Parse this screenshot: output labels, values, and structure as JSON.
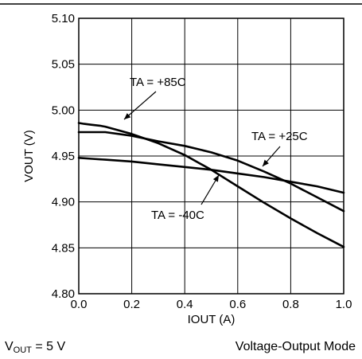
{
  "chart_data": {
    "type": "line",
    "title": "",
    "xlabel": "IOUT (A)",
    "ylabel": "VOUT (V)",
    "xlim": [
      0.0,
      1.0
    ],
    "ylim": [
      4.8,
      5.1
    ],
    "xticks": [
      "0.0",
      "0.2",
      "0.4",
      "0.6",
      "0.8",
      "1.0"
    ],
    "yticks": [
      "4.80",
      "4.85",
      "4.90",
      "4.95",
      "5.00",
      "5.05",
      "5.10"
    ],
    "grid": true,
    "series": [
      {
        "name": "TA = +85C",
        "x": [
          0.0,
          0.02,
          0.05,
          0.08,
          0.1,
          0.2,
          0.3,
          0.4,
          0.5,
          0.6,
          0.7,
          0.8,
          0.9,
          1.0
        ],
        "y": [
          4.986,
          4.985,
          4.984,
          4.983,
          4.982,
          4.974,
          4.964,
          4.951,
          4.935,
          4.917,
          4.899,
          4.882,
          4.866,
          4.851
        ]
      },
      {
        "name": "TA = +25C",
        "x": [
          0.0,
          0.05,
          0.1,
          0.2,
          0.3,
          0.4,
          0.5,
          0.6,
          0.7,
          0.8,
          0.9,
          1.0
        ],
        "y": [
          4.976,
          4.976,
          4.976,
          4.972,
          4.966,
          4.961,
          4.954,
          4.945,
          4.933,
          4.92,
          4.905,
          4.89
        ]
      },
      {
        "name": "TA = -40C",
        "x": [
          0.0,
          0.05,
          0.1,
          0.2,
          0.3,
          0.4,
          0.5,
          0.6,
          0.7,
          0.8,
          0.9,
          1.0
        ],
        "y": [
          4.948,
          4.947,
          4.946,
          4.944,
          4.941,
          4.938,
          4.935,
          4.931,
          4.927,
          4.922,
          4.917,
          4.91
        ]
      }
    ],
    "annotations": [
      {
        "text": "TA = +85C",
        "series": "TA = +85C"
      },
      {
        "text": "TA = +25C",
        "series": "TA = +25C"
      },
      {
        "text": "TA = -40C",
        "series": "TA = -40C"
      }
    ]
  },
  "footer": {
    "left_main": "V",
    "left_sub": "OUT",
    "left_rest": " = 5 V",
    "right": "Voltage-Output Mode"
  }
}
